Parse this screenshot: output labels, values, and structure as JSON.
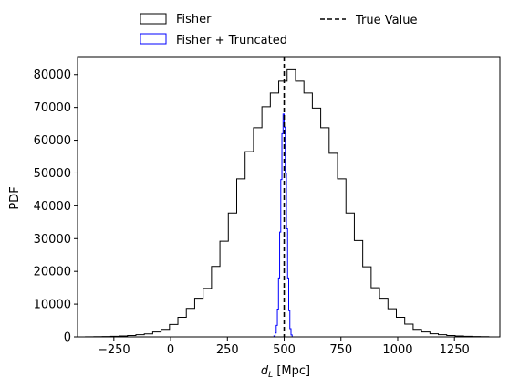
{
  "chart_data": {
    "type": "histogram",
    "xlabel_main": "d",
    "xlabel_sub": "L",
    "xlabel_unit": " [Mpc]",
    "ylabel": "PDF",
    "xlim": [
      -410,
      1450
    ],
    "ylim": [
      0,
      85500
    ],
    "xticks": [
      -250,
      0,
      250,
      500,
      750,
      1000,
      1250
    ],
    "xtick_labels": [
      "−250",
      "0",
      "250",
      "500",
      "750",
      "1000",
      "1250"
    ],
    "yticks": [
      0,
      10000,
      20000,
      30000,
      40000,
      50000,
      60000,
      70000,
      80000
    ],
    "ytick_labels": [
      "0",
      "10000",
      "20000",
      "30000",
      "40000",
      "50000",
      "60000",
      "70000",
      "80000"
    ],
    "legend": {
      "placement": "above plot, two columns",
      "entries": [
        {
          "label": "Fisher",
          "style": "histogram",
          "color": "#000000"
        },
        {
          "label": "Fisher + Truncated",
          "style": "histogram",
          "color": "#0000ff"
        },
        {
          "label": "True Value",
          "style": "dashed line",
          "color": "#000000"
        }
      ]
    },
    "series": [
      {
        "name": "Fisher",
        "color": "#000000",
        "bin_edges": [
          -375,
          -338,
          -301,
          -264,
          -227,
          -190,
          -153,
          -116,
          -79,
          -42,
          -5,
          32,
          69,
          106,
          143,
          180,
          217,
          254,
          291,
          328,
          365,
          402,
          439,
          476,
          513,
          550,
          587,
          624,
          661,
          698,
          735,
          772,
          809,
          846,
          883,
          920,
          957,
          994,
          1031,
          1068,
          1105,
          1142,
          1179,
          1216,
          1253,
          1290,
          1327,
          1364,
          1401
        ],
        "values": [
          50,
          80,
          120,
          180,
          280,
          420,
          650,
          900,
          1500,
          2300,
          3800,
          6000,
          8700,
          11800,
          14800,
          21500,
          29200,
          37800,
          48200,
          56500,
          63800,
          70200,
          74400,
          78000,
          81500,
          78000,
          74400,
          69800,
          63800,
          56000,
          48200,
          37800,
          29400,
          21400,
          15000,
          11800,
          8600,
          6000,
          3900,
          2300,
          1500,
          950,
          650,
          420,
          280,
          180,
          120,
          80
        ]
      },
      {
        "name": "Fisher + Truncated",
        "color": "#0000ff",
        "bin_edges": [
          455,
          460,
          465,
          470,
          475,
          480,
          485,
          490,
          495,
          500,
          505,
          510,
          515,
          520,
          525,
          530,
          535
        ],
        "values": [
          300,
          1200,
          3500,
          8500,
          18000,
          32000,
          48000,
          62000,
          68000,
          64000,
          50000,
          33000,
          18000,
          8000,
          2500,
          600
        ]
      }
    ],
    "reference_line": {
      "name": "True Value",
      "x": 500,
      "style": "dashed",
      "color": "#000000"
    }
  }
}
